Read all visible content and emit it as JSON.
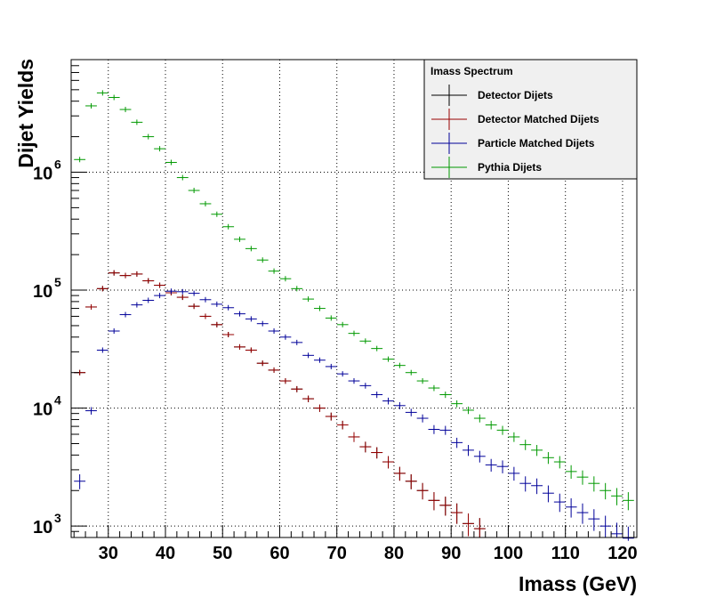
{
  "chart_data": {
    "type": "scatter",
    "title": "",
    "xlabel": "Imass (GeV)",
    "ylabel": "Dijet Yields",
    "xlim": [
      23.5,
      122.5
    ],
    "ylim": [
      800,
      9000000
    ],
    "y_scale": "log",
    "grid": true,
    "legend_title": "Imass Spectrum",
    "legend_position": "top-right",
    "x_ticks": [
      30,
      40,
      50,
      60,
      70,
      80,
      90,
      100,
      110,
      120
    ],
    "x_tick_labels": [
      "30",
      "40",
      "50",
      "60",
      "70",
      "80",
      "90",
      "100",
      "110",
      "120"
    ],
    "y_ticks": [
      {
        "value": 1000,
        "base": "10",
        "exp": "3"
      },
      {
        "value": 10000,
        "base": "10",
        "exp": "4"
      },
      {
        "value": 100000,
        "base": "10",
        "exp": "5"
      },
      {
        "value": 1000000,
        "base": "10",
        "exp": "6"
      }
    ],
    "bin_width": 2,
    "x": [
      25,
      27,
      29,
      31,
      33,
      35,
      37,
      39,
      41,
      43,
      45,
      47,
      49,
      51,
      53,
      55,
      57,
      59,
      61,
      63,
      65,
      67,
      69,
      71,
      73,
      75,
      77,
      79,
      81,
      83,
      85,
      87,
      89,
      91,
      93,
      95,
      97,
      99,
      101,
      103,
      105,
      107,
      109,
      111,
      113,
      115,
      117,
      119,
      121
    ],
    "series": [
      {
        "name": "Detector Dijets",
        "color": "#000000",
        "values": [
          20000,
          72000,
          103000,
          140000,
          133000,
          137000,
          120000,
          110000,
          95000,
          87000,
          73000,
          60000,
          51000,
          42000,
          33000,
          31000,
          24000,
          21000,
          17000,
          14500,
          12000,
          10000,
          8500,
          7200,
          5700,
          4700,
          4200,
          3500,
          2800,
          2400,
          2000,
          1650,
          1500,
          1300,
          1050,
          950,
          null,
          null,
          null,
          null,
          null,
          null,
          null,
          null,
          null,
          null,
          null,
          null,
          null
        ]
      },
      {
        "name": "Detector Matched Dijets",
        "color": "#990000",
        "values": [
          20000,
          72000,
          103000,
          140000,
          133000,
          137000,
          120000,
          110000,
          95000,
          87000,
          73000,
          60000,
          51000,
          42000,
          33000,
          31000,
          24000,
          21000,
          17000,
          14500,
          12000,
          10000,
          8500,
          7200,
          5700,
          4700,
          4200,
          3500,
          2800,
          2400,
          2000,
          1650,
          1500,
          1300,
          1050,
          950,
          null,
          null,
          null,
          null,
          null,
          null,
          null,
          null,
          null,
          null,
          null,
          null,
          null
        ]
      },
      {
        "name": "Particle Matched  Dijets",
        "color": "#000099",
        "values": [
          2400,
          9500,
          31000,
          45000,
          62000,
          75000,
          82000,
          90000,
          98000,
          97000,
          94000,
          83000,
          76000,
          71000,
          63000,
          57000,
          52000,
          45000,
          40000,
          36000,
          28000,
          25500,
          22500,
          19500,
          17000,
          15500,
          13000,
          11500,
          10500,
          9200,
          8200,
          6600,
          6500,
          5100,
          4400,
          3900,
          3300,
          3200,
          2800,
          2300,
          2200,
          1900,
          1600,
          1450,
          1300,
          1150,
          1000,
          860,
          790
        ]
      },
      {
        "name": "Pythia Dijets",
        "color": "#009900",
        "values": [
          1280000,
          3650000,
          4700000,
          4300000,
          3400000,
          2650000,
          2000000,
          1580000,
          1210000,
          900000,
          700000,
          540000,
          440000,
          345000,
          270000,
          225000,
          180000,
          145000,
          125000,
          103000,
          84000,
          70000,
          58000,
          51000,
          43000,
          37000,
          32000,
          26000,
          23000,
          20000,
          17000,
          14800,
          13000,
          10900,
          9600,
          8200,
          7200,
          6500,
          5700,
          4900,
          4400,
          3800,
          3500,
          2900,
          2600,
          2300,
          2000,
          1800,
          1650
        ]
      }
    ]
  }
}
